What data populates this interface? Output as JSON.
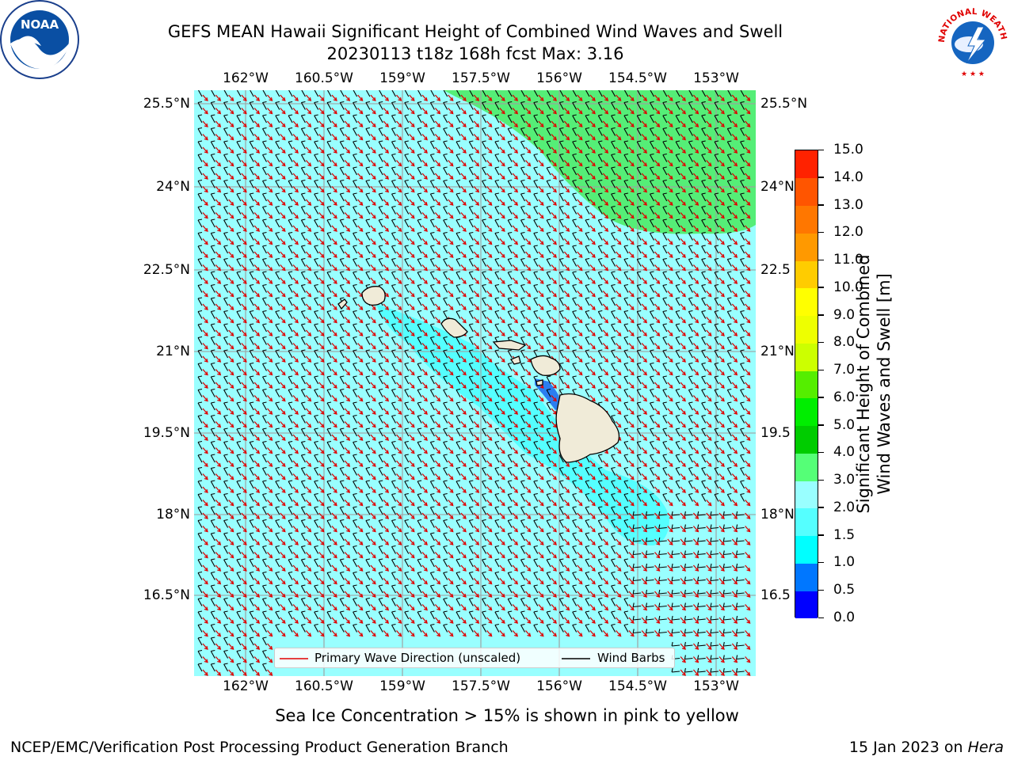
{
  "title": {
    "line1": "GEFS MEAN Hawaii Significant Height of Combined Wind Waves and Swell",
    "line2": "20230113 t18z 168h fcst   Max: 3.16"
  },
  "map": {
    "lon_ticks": [
      "162°W",
      "160.5°W",
      "159°W",
      "157.5°W",
      "156°W",
      "154.5°W",
      "153°W"
    ],
    "lat_ticks": [
      "25.5°N",
      "24°N",
      "22.5°N",
      "21°N",
      "19.5°N",
      "18°N",
      "16.5°N"
    ],
    "lat_ticks_right": [
      "25.5°N",
      "24°N",
      "22.5",
      "21°N",
      "19.5",
      "18°N",
      "16.5"
    ],
    "colors": {
      "background_wave": "#99ffff",
      "high_wave": "#55ee77",
      "island": "#f0ebd8",
      "arrow": "#e00000",
      "barb": "#000000",
      "grid": "#a0a0a0"
    }
  },
  "legend": {
    "primary_wave": "Primary Wave Direction (unscaled)",
    "wind_barbs": "Wind Barbs"
  },
  "colorbar": {
    "label_line1": "Significant Height of Combined",
    "label_line2": "Wind Waves and Swell [m]",
    "ticks": [
      "0.0",
      "0.5",
      "1.0",
      "1.5",
      "2.0",
      "3.0",
      "4.0",
      "5.0",
      "6.0",
      "7.0",
      "8.0",
      "9.0",
      "10.0",
      "11.0",
      "12.0",
      "13.0",
      "14.0",
      "15.0"
    ],
    "colors": [
      "#0000ff",
      "#0077ff",
      "#00ffff",
      "#55ffff",
      "#99ffff",
      "#55ff77",
      "#00cc00",
      "#00ee00",
      "#55ee00",
      "#ccff00",
      "#eeff00",
      "#ffff00",
      "#ffcc00",
      "#ff9900",
      "#ff7700",
      "#ff5500",
      "#ff2200",
      "#ff0000"
    ]
  },
  "logos": {
    "noaa_text": "NOAA",
    "nws_text": "NATIONAL WEATHER SERVICE"
  },
  "footer": {
    "ice_note": "Sea Ice Concentration > 15% is shown in pink to yellow",
    "branch": "NCEP/EMC/Verification Post Processing Product Generation Branch",
    "date_prefix": "15 Jan 2023 on ",
    "host": "Hera"
  }
}
